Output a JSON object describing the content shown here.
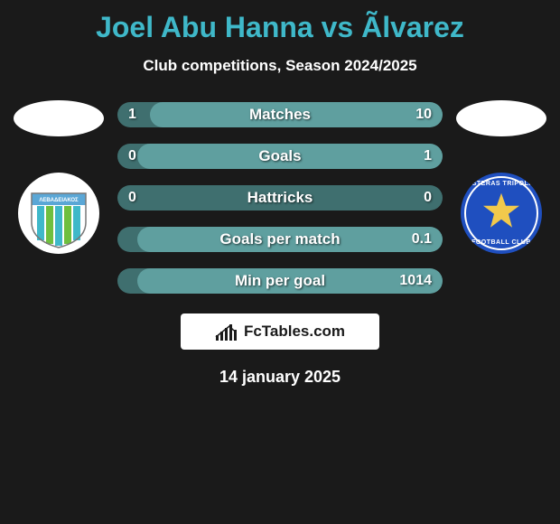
{
  "title_color": "#3fb8c9",
  "title": "Joel Abu Hanna vs Ãlvarez",
  "subtitle": "Club competitions, Season 2024/2025",
  "date": "14 january 2025",
  "brand": "FcTables.com",
  "players": {
    "left": {
      "oval_color": "#ffffff",
      "club_name": "Levadiakos",
      "badge": {
        "bg": "#ffffff",
        "banner_bg": "#5aa7d6",
        "banner_text": "ΛΕΒΑΔΕΙΑΚΟΣ",
        "stripe_a": "#3fb8c9",
        "stripe_b": "#6fbf3f"
      }
    },
    "right": {
      "oval_color": "#ffffff",
      "club_name": "Asteras Tripolis",
      "badge": {
        "bg": "#1f4fbf",
        "star_fill": "#f2c94c",
        "ring": "#ffffff",
        "top_text": "ASTERAS TRIPOLIS",
        "bottom_text": "FOOTBALL CLUB"
      }
    }
  },
  "stats": {
    "bar_bg": "#3f6f6f",
    "fill_left_offset_pct": 6,
    "fill_color": "#5f9f9f",
    "rows": [
      {
        "label": "Matches",
        "left_val": "1",
        "right_val": "10",
        "left_pct": 10,
        "right_pct": 90
      },
      {
        "label": "Goals",
        "left_val": "0",
        "right_val": "1",
        "left_pct": 0,
        "right_pct": 100
      },
      {
        "label": "Hattricks",
        "left_val": "0",
        "right_val": "0",
        "left_pct": 0,
        "right_pct": 0
      },
      {
        "label": "Goals per match",
        "left_val": "",
        "right_val": "0.1",
        "left_pct": 0,
        "right_pct": 100
      },
      {
        "label": "Min per goal",
        "left_val": "",
        "right_val": "1014",
        "left_pct": 0,
        "right_pct": 100
      }
    ]
  },
  "brand_bars": {
    "bg": "#ffffff",
    "bar_color": "#1a1a1a",
    "heights": [
      6,
      10,
      14,
      18,
      12
    ]
  }
}
